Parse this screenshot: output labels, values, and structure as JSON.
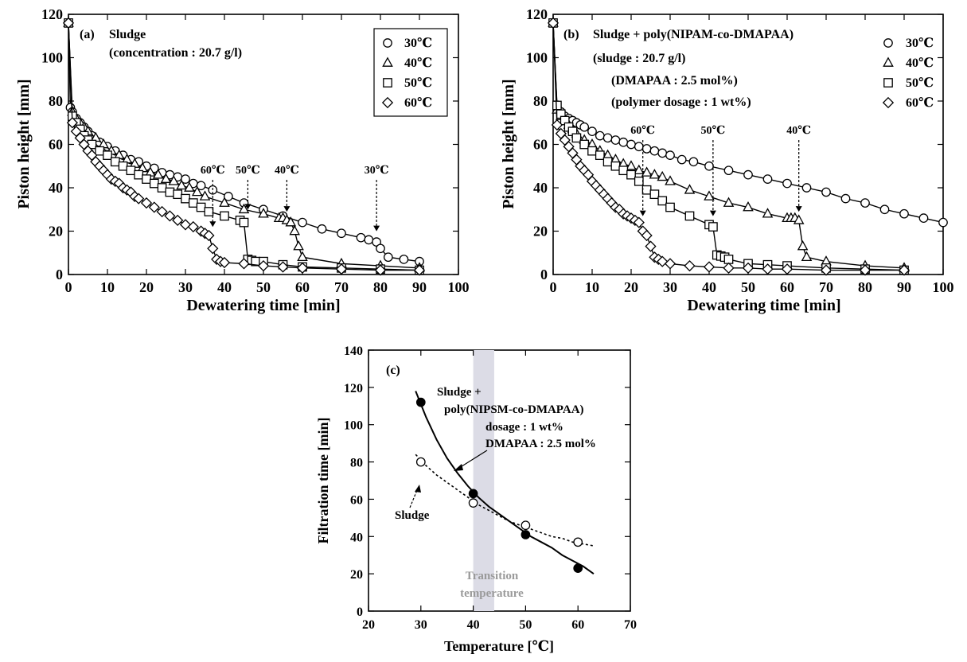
{
  "chart_data": [
    {
      "id": "a",
      "type": "line",
      "panel_label": "(a)",
      "annotation_lines": [
        "Sludge",
        "(concentration : 20.7 g/l)"
      ],
      "xlabel": "Dewatering time  [min]",
      "ylabel": "Piston height  [mm]",
      "xlim": [
        0,
        100
      ],
      "ylim": [
        0,
        120
      ],
      "xticks": [
        0,
        10,
        20,
        30,
        40,
        50,
        60,
        70,
        80,
        90,
        100
      ],
      "yticks": [
        0,
        20,
        40,
        60,
        80,
        100,
        120
      ],
      "legend_position": "top-right",
      "transition_labels": [
        {
          "text": "60℃",
          "x": 37,
          "y": 19
        },
        {
          "text": "50℃",
          "x": 46,
          "y": 27
        },
        {
          "text": "40℃",
          "x": 56,
          "y": 26
        },
        {
          "text": "30℃",
          "x": 79,
          "y": 17
        }
      ],
      "series": [
        {
          "name": "30℃",
          "marker": "circle",
          "x": [
            0,
            0.5,
            1,
            2,
            3,
            4,
            5,
            6,
            8,
            10,
            12,
            14,
            16,
            18,
            20,
            22,
            24,
            26,
            28,
            30,
            32,
            34,
            37,
            41,
            45,
            50,
            55,
            60,
            65,
            70,
            75,
            77,
            79,
            80,
            82,
            86,
            90
          ],
          "y": [
            116,
            77,
            75,
            72,
            70,
            68,
            66,
            64,
            61,
            59,
            57,
            55,
            53,
            52,
            50,
            49,
            47,
            46,
            45,
            44,
            42,
            41,
            39,
            36,
            33,
            30,
            27,
            24,
            21,
            19,
            17,
            16,
            15,
            12,
            8,
            7,
            6
          ]
        },
        {
          "name": "40℃",
          "marker": "triangle",
          "x": [
            0,
            1,
            2,
            3,
            4,
            5,
            7,
            9,
            11,
            13,
            15,
            17,
            19,
            21,
            23,
            25,
            27,
            29,
            31,
            33,
            35,
            40,
            45,
            50,
            54,
            55,
            56,
            57,
            58,
            59,
            60,
            70,
            80,
            90
          ],
          "y": [
            116,
            75,
            72,
            70,
            68,
            66,
            63,
            60,
            57,
            55,
            53,
            51,
            49,
            47,
            46,
            44,
            43,
            41,
            40,
            38,
            36,
            33,
            30,
            28,
            26,
            26,
            25,
            24,
            20,
            13,
            8,
            5,
            4,
            3
          ]
        },
        {
          "name": "50℃",
          "marker": "square",
          "x": [
            0,
            1,
            2,
            3,
            4,
            5,
            6,
            8,
            10,
            12,
            14,
            16,
            18,
            20,
            22,
            24,
            26,
            28,
            30,
            32,
            34,
            36,
            40,
            44,
            45,
            46,
            47,
            48,
            50,
            55,
            60,
            70,
            80,
            90
          ],
          "y": [
            116,
            73,
            70,
            67,
            64,
            62,
            60,
            57,
            55,
            52,
            50,
            48,
            46,
            44,
            42,
            40,
            38,
            37,
            35,
            33,
            31,
            29,
            27,
            25,
            24,
            7,
            6.5,
            6,
            6,
            4.5,
            3.5,
            3,
            2.5,
            2
          ]
        },
        {
          "name": "60℃",
          "marker": "diamond",
          "x": [
            0,
            1,
            2,
            3,
            4,
            5,
            6,
            7,
            8,
            9,
            10,
            11,
            12,
            13,
            14,
            15,
            16,
            17,
            18,
            20,
            22,
            24,
            26,
            28,
            30,
            32,
            34,
            35,
            36,
            37,
            38,
            39,
            40,
            45,
            50,
            55,
            60,
            70,
            80,
            90
          ],
          "y": [
            116,
            70,
            66,
            63,
            60,
            57,
            55,
            52,
            50,
            48,
            46,
            44,
            43,
            42,
            40,
            39,
            38,
            36,
            35,
            33,
            31,
            29,
            27,
            25,
            23,
            22,
            20,
            19,
            18,
            12,
            7,
            6,
            5.5,
            5,
            4,
            3.5,
            3,
            2.5,
            2,
            2
          ]
        }
      ]
    },
    {
      "id": "b",
      "type": "line",
      "panel_label": "(b)",
      "annotation_lines": [
        "Sludge + poly(NIPAM-co-DMAPAA)",
        "(sludge : 20.7 g/l)",
        "(DMAPAA : 2.5 mol%)",
        "(polymer dosage : 1 wt%)"
      ],
      "xlabel": "Dewatering time  [min]",
      "ylabel": "Piston height  [mm]",
      "xlim": [
        0,
        100
      ],
      "ylim": [
        0,
        120
      ],
      "xticks": [
        0,
        10,
        20,
        30,
        40,
        50,
        60,
        70,
        80,
        90,
        100
      ],
      "yticks": [
        0,
        20,
        40,
        60,
        80,
        100,
        120
      ],
      "legend_position": "top-right",
      "transition_labels": [
        {
          "text": "60℃",
          "x": 23,
          "y": 24
        },
        {
          "text": "50℃",
          "x": 41,
          "y": 24
        },
        {
          "text": "40℃",
          "x": 63,
          "y": 26
        }
      ],
      "series": [
        {
          "name": "30℃",
          "marker": "circle",
          "x": [
            0,
            1,
            2,
            3,
            4,
            5,
            6,
            7,
            8,
            10,
            12,
            14,
            16,
            18,
            20,
            22,
            24,
            26,
            28,
            30,
            33,
            36,
            40,
            45,
            50,
            55,
            60,
            65,
            70,
            75,
            80,
            85,
            90,
            95,
            100
          ],
          "y": [
            116,
            77,
            75,
            73,
            72,
            71,
            70,
            69,
            68,
            66,
            64,
            63,
            62,
            61,
            60,
            59,
            58,
            57,
            56,
            55,
            53,
            52,
            50,
            48,
            46,
            44,
            42,
            40,
            38,
            35,
            33,
            30,
            28,
            26,
            24
          ]
        },
        {
          "name": "40℃",
          "marker": "triangle",
          "x": [
            0,
            1,
            2,
            3,
            4,
            5,
            6,
            8,
            10,
            12,
            14,
            16,
            18,
            20,
            22,
            24,
            26,
            28,
            30,
            35,
            40,
            45,
            50,
            55,
            60,
            61,
            62,
            63,
            64,
            65,
            70,
            80,
            90
          ],
          "y": [
            116,
            76,
            73,
            71,
            69,
            67,
            65,
            62,
            60,
            57,
            55,
            53,
            51,
            50,
            48,
            47,
            46,
            45,
            43,
            39,
            36,
            33,
            31,
            28,
            26,
            26,
            26,
            25,
            13,
            8,
            6,
            4,
            3
          ]
        },
        {
          "name": "50℃",
          "marker": "square",
          "x": [
            0,
            1,
            2,
            3,
            4,
            5,
            6,
            8,
            10,
            12,
            14,
            16,
            18,
            20,
            22,
            24,
            26,
            28,
            30,
            35,
            40,
            41,
            42,
            43,
            44,
            45,
            50,
            55,
            60,
            70,
            80,
            90
          ],
          "y": [
            116,
            78,
            74,
            71,
            68,
            66,
            63,
            60,
            57,
            55,
            52,
            50,
            48,
            46,
            43,
            39,
            37,
            34,
            31,
            27,
            23,
            22,
            9,
            8.5,
            8,
            7,
            5,
            4.5,
            4,
            3,
            2.5,
            2
          ]
        },
        {
          "name": "60℃",
          "marker": "diamond",
          "x": [
            0,
            1,
            2,
            3,
            4,
            5,
            6,
            7,
            8,
            9,
            10,
            11,
            12,
            13,
            14,
            15,
            16,
            17,
            18,
            19,
            20,
            21,
            22,
            23,
            24,
            25,
            26,
            27,
            28,
            30,
            35,
            40,
            45,
            50,
            55,
            60,
            70,
            80,
            90
          ],
          "y": [
            116,
            69,
            65,
            62,
            59,
            56,
            53,
            50,
            48,
            46,
            43,
            41,
            39,
            37,
            35,
            33,
            31,
            30,
            28,
            27,
            26,
            25,
            24,
            20,
            18,
            13,
            8,
            7,
            6,
            5,
            4,
            3.5,
            3,
            3,
            2.5,
            2.5,
            2,
            2,
            2
          ]
        }
      ]
    },
    {
      "id": "c",
      "type": "scatter",
      "panel_label": "(c)",
      "xlabel": "Temperature  [℃]",
      "ylabel": "Filtration time  [min]",
      "xlim": [
        20,
        70
      ],
      "ylim": [
        0,
        140
      ],
      "xticks": [
        20,
        30,
        40,
        50,
        60,
        70
      ],
      "yticks": [
        0,
        20,
        40,
        60,
        80,
        100,
        120,
        140
      ],
      "transition_band": {
        "x_range": [
          40,
          44
        ],
        "label_lines": [
          "Transition",
          "temperature"
        ]
      },
      "annotation_lines": [
        "Sludge +",
        "poly(NIPSM-co-DMAPAA)",
        "dosage : 1 wt%",
        "DMAPAA : 2.5 mol%"
      ],
      "sludge_label": "Sludge",
      "series": [
        {
          "name": "Sludge + poly(NIPSM-co-DMAPAA)",
          "marker": "filled-circle",
          "line": "solid",
          "x": [
            30,
            40,
            50,
            60
          ],
          "y": [
            112,
            63,
            41,
            23
          ],
          "fit_x": [
            29,
            31,
            33,
            35,
            37,
            39,
            41,
            43,
            45,
            47,
            49,
            51,
            53,
            55,
            57,
            59,
            61,
            63
          ],
          "fit_y": [
            118,
            104,
            92,
            82,
            74,
            67,
            61,
            56,
            52,
            48,
            44,
            40,
            37,
            34,
            30,
            27,
            24,
            20
          ]
        },
        {
          "name": "Sludge",
          "marker": "open-circle",
          "line": "dotted",
          "x": [
            30,
            40,
            50,
            60
          ],
          "y": [
            80,
            58,
            46,
            37
          ],
          "fit_x": [
            29,
            31,
            33,
            35,
            37,
            39,
            41,
            43,
            45,
            47,
            49,
            51,
            53,
            55,
            57,
            59,
            61,
            63
          ],
          "fit_y": [
            84,
            78,
            73,
            69,
            65,
            61,
            57,
            54,
            51,
            48,
            46,
            44,
            42,
            40,
            39,
            37,
            36,
            35
          ]
        }
      ]
    }
  ]
}
